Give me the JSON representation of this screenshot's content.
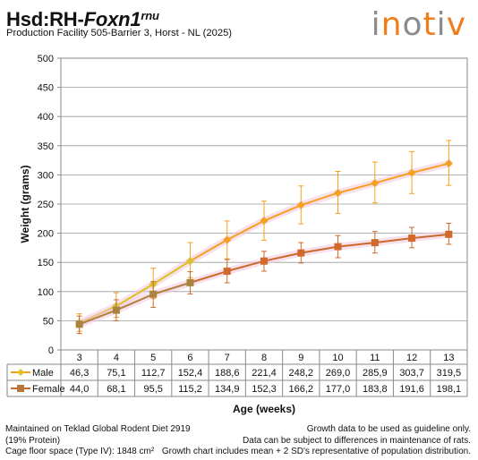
{
  "header": {
    "title_main": "Hsd:RH-",
    "title_gene": "Foxn1",
    "title_sup": "rnu",
    "subtitle": "Production Facility 505-Barrier 3, Horst - NL (2025)"
  },
  "logo": {
    "text": "inotiv"
  },
  "chart_data": {
    "type": "line",
    "title": "",
    "xlabel": "Age (weeks)",
    "ylabel": "Weight (grams)",
    "ylim": [
      0,
      500
    ],
    "yticks": [
      0,
      50,
      100,
      150,
      200,
      250,
      300,
      350,
      400,
      450,
      500
    ],
    "categories": [
      "3",
      "4",
      "5",
      "6",
      "7",
      "8",
      "9",
      "10",
      "11",
      "12",
      "13"
    ],
    "grid": true,
    "legend": "data table below x-axis",
    "series": [
      {
        "name": "Male",
        "color": "#f5a020",
        "values": [
          46.3,
          75.1,
          112.7,
          152.4,
          188.6,
          221.4,
          248.2,
          269.0,
          285.9,
          303.7,
          319.5
        ],
        "labels": [
          "46,3",
          "75,1",
          "112,7",
          "152,4",
          "188,6",
          "221,4",
          "248,2",
          "269,0",
          "285,9",
          "303,7",
          "319,5"
        ],
        "error_low": [
          32,
          56,
          88,
          124,
          156,
          188,
          216,
          234,
          252,
          268,
          282
        ],
        "error_high": [
          62,
          98,
          140,
          184,
          221,
          255,
          281,
          306,
          322,
          340,
          359
        ]
      },
      {
        "name": "Female",
        "color": "#c96a2b",
        "values": [
          44.0,
          68.1,
          95.5,
          115.2,
          134.9,
          152.3,
          166.2,
          177.0,
          183.8,
          191.6,
          198.1
        ],
        "labels": [
          "44,0",
          "68,1",
          "95,5",
          "115,2",
          "134,9",
          "152,3",
          "166,2",
          "177,0",
          "183,8",
          "191,6",
          "198,1"
        ],
        "error_low": [
          28,
          50,
          73,
          96,
          115,
          135,
          149,
          158,
          166,
          175,
          181
        ],
        "error_high": [
          58,
          86,
          117,
          134,
          155,
          169,
          184,
          196,
          203,
          210,
          217
        ]
      }
    ]
  },
  "footer": {
    "left": [
      "Maintained on Teklad Global Rodent Diet 2919",
      "(19% Protein)",
      "Cage floor space (Type IV): 1848 cm²"
    ],
    "right": [
      "Growth data to be used as guideline only.",
      "Data can be subject to differences in maintenance of rats.",
      "Growth chart includes mean + 2 SD's representative of population distribution."
    ]
  }
}
